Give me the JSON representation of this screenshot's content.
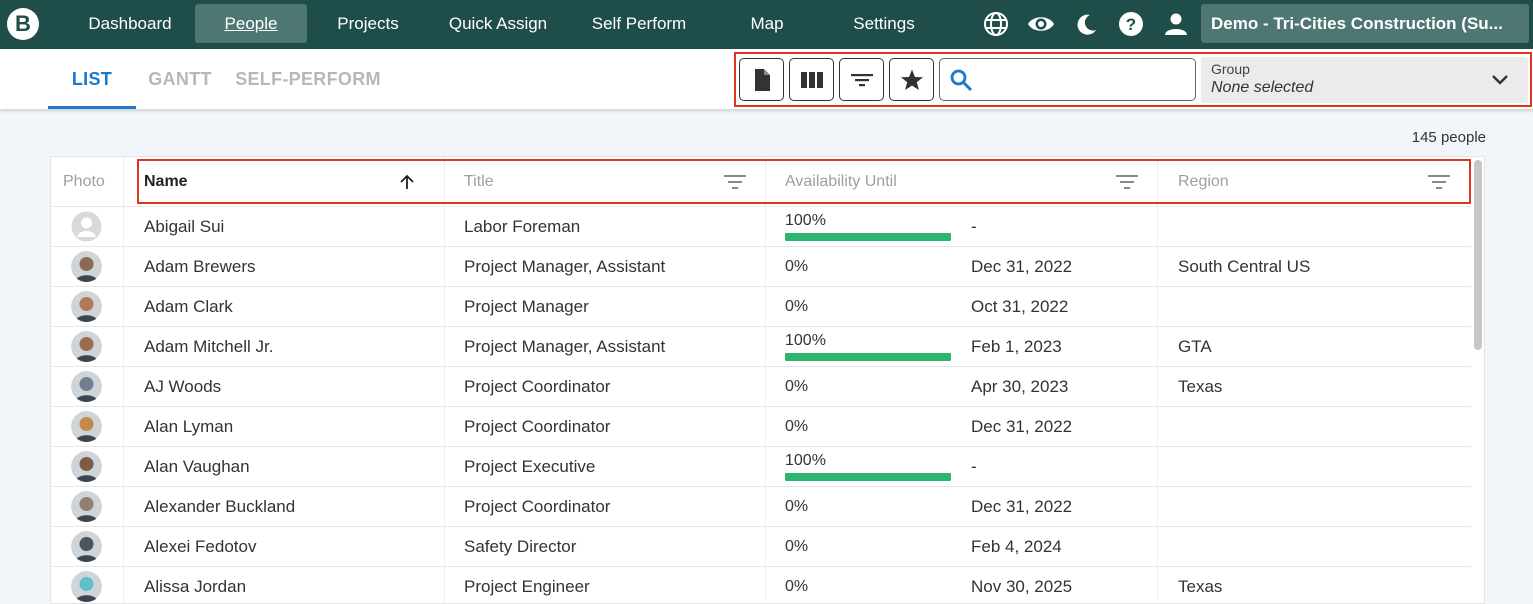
{
  "nav": {
    "logo": "B",
    "items": [
      {
        "label": "Dashboard"
      },
      {
        "label": "People"
      },
      {
        "label": "Projects"
      },
      {
        "label": "Quick Assign"
      },
      {
        "label": "Self Perform"
      },
      {
        "label": "Map"
      },
      {
        "label": "Settings"
      }
    ],
    "active": "People",
    "icons": [
      "globe-icon",
      "eye-icon",
      "moon-icon",
      "help-icon",
      "account-icon"
    ],
    "org": "Demo - Tri-Cities Construction (Su..."
  },
  "tabs": [
    {
      "label": "LIST"
    },
    {
      "label": "GANTT"
    },
    {
      "label": "SELF-PERFORM"
    }
  ],
  "active_tab": "LIST",
  "toolbar": {
    "buttons": [
      "document-icon",
      "columns-icon",
      "filter-icon",
      "star-icon"
    ],
    "search_value": "",
    "group_label": "Group",
    "group_value": "None selected"
  },
  "count_text": "145 people",
  "table": {
    "headers": {
      "photo": "Photo",
      "name": "Name",
      "title": "Title",
      "availability": "Availability Until",
      "region": "Region"
    },
    "sort": {
      "column": "Name",
      "direction": "ascending"
    },
    "rows": [
      {
        "name": "Abigail Sui",
        "title": "Labor Foreman",
        "availability": "100%",
        "available_fraction": 1.0,
        "until": "-",
        "region": "",
        "avatar": "placeholder"
      },
      {
        "name": "Adam Brewers",
        "title": "Project Manager, Assistant",
        "availability": "0%",
        "available_fraction": 0,
        "until": "Dec 31, 2022",
        "region": "South Central US",
        "avatar": "photo"
      },
      {
        "name": "Adam Clark",
        "title": "Project Manager",
        "availability": "0%",
        "available_fraction": 0,
        "until": "Oct 31, 2022",
        "region": "",
        "avatar": "photo"
      },
      {
        "name": "Adam Mitchell Jr.",
        "title": "Project Manager, Assistant",
        "availability": "100%",
        "available_fraction": 1.0,
        "until": "Feb 1, 2023",
        "region": "GTA",
        "avatar": "photo"
      },
      {
        "name": "AJ Woods",
        "title": "Project Coordinator",
        "availability": "0%",
        "available_fraction": 0,
        "until": "Apr 30, 2023",
        "region": "Texas",
        "avatar": "photo"
      },
      {
        "name": "Alan Lyman",
        "title": "Project Coordinator",
        "availability": "0%",
        "available_fraction": 0,
        "until": "Dec 31, 2022",
        "region": "",
        "avatar": "photo"
      },
      {
        "name": "Alan Vaughan",
        "title": "Project Executive",
        "availability": "100%",
        "available_fraction": 1.0,
        "until": "-",
        "region": "",
        "avatar": "photo"
      },
      {
        "name": "Alexander Buckland",
        "title": "Project Coordinator",
        "availability": "0%",
        "available_fraction": 0,
        "until": "Dec 31, 2022",
        "region": "",
        "avatar": "photo"
      },
      {
        "name": "Alexei Fedotov",
        "title": "Safety Director",
        "availability": "0%",
        "available_fraction": 0,
        "until": "Feb 4, 2024",
        "region": "",
        "avatar": "photo"
      },
      {
        "name": "Alissa Jordan",
        "title": "Project Engineer",
        "availability": "0%",
        "available_fraction": 0,
        "until": "Nov 30, 2025",
        "region": "Texas",
        "avatar": "photo"
      }
    ]
  },
  "colors": {
    "nav_bg": "#1f4d4a",
    "nav_active": "#4e7673",
    "accent_blue": "#1c78c8",
    "availability_bar": "#2db56f",
    "highlight_box": "#e0351f"
  }
}
